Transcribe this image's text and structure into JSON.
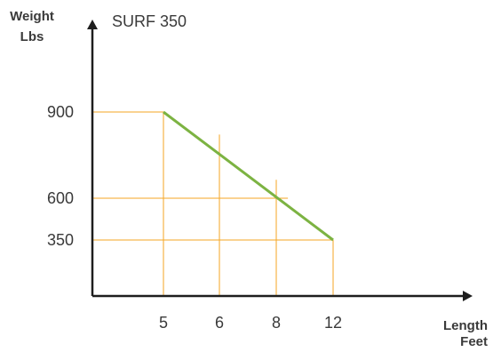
{
  "chart_data": {
    "type": "line",
    "title": "SURF 350",
    "ylabel_lines": [
      "Weight",
      "Lbs"
    ],
    "xlabel_lines": [
      "Length",
      "Feet"
    ],
    "x_ticks": [
      "5",
      "6",
      "8",
      "12"
    ],
    "y_ticks": [
      "900",
      "600",
      "350"
    ],
    "series": [
      {
        "x": [
          5,
          12
        ],
        "y": [
          900,
          350
        ]
      }
    ],
    "colors": {
      "line": "#7cb342",
      "guide": "#f5a623",
      "axis": "#1e1e1e"
    },
    "grid": "guides to line"
  }
}
